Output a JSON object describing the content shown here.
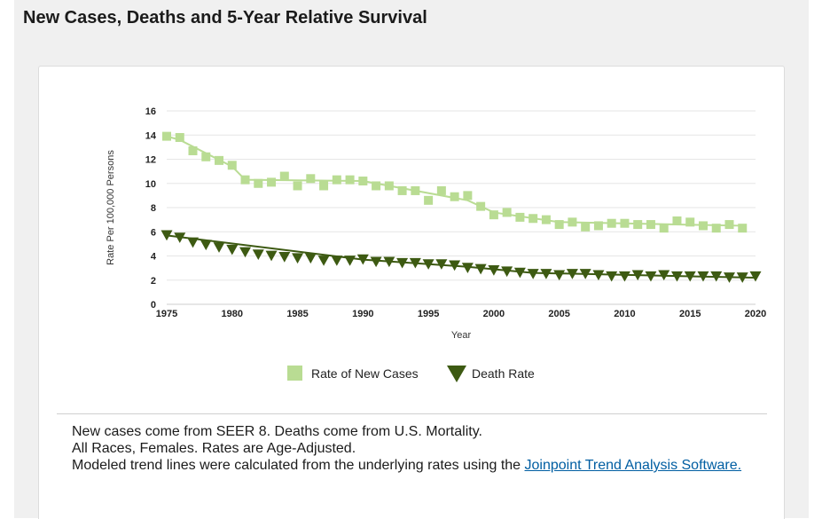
{
  "panel": {
    "title": "New Cases, Deaths and 5-Year Relative Survival"
  },
  "chart_data": {
    "type": "line",
    "xlabel": "Year",
    "ylabel": "Rate Per 100,000 Persons",
    "xlim": [
      1975,
      2020
    ],
    "ylim": [
      0,
      16
    ],
    "x_ticks": [
      1975,
      1980,
      1985,
      1990,
      1995,
      2000,
      2005,
      2010,
      2015,
      2020
    ],
    "y_ticks": [
      0,
      2,
      4,
      6,
      8,
      10,
      12,
      14,
      16
    ],
    "grid": true,
    "legend_position": "bottom",
    "series": [
      {
        "name": "Rate of New Cases",
        "marker": "square",
        "color": "#b9dc93",
        "x": [
          1975,
          1976,
          1977,
          1978,
          1979,
          1980,
          1981,
          1982,
          1983,
          1984,
          1985,
          1986,
          1987,
          1988,
          1989,
          1990,
          1991,
          1992,
          1993,
          1994,
          1995,
          1996,
          1997,
          1998,
          1999,
          2000,
          2001,
          2002,
          2003,
          2004,
          2005,
          2006,
          2007,
          2008,
          2009,
          2010,
          2011,
          2012,
          2013,
          2014,
          2015,
          2016,
          2017,
          2018,
          2019
        ],
        "values": [
          13.9,
          13.8,
          12.7,
          12.2,
          11.9,
          11.5,
          10.3,
          10.0,
          10.1,
          10.6,
          9.8,
          10.4,
          9.8,
          10.3,
          10.3,
          10.2,
          9.8,
          9.8,
          9.4,
          9.4,
          8.6,
          9.4,
          8.9,
          9.0,
          8.1,
          7.4,
          7.6,
          7.2,
          7.1,
          7.0,
          6.6,
          6.8,
          6.4,
          6.5,
          6.7,
          6.7,
          6.6,
          6.6,
          6.3,
          6.9,
          6.8,
          6.5,
          6.3,
          6.6,
          6.3
        ],
        "trend": {
          "x": [
            1975,
            1976,
            1980,
            1981,
            1990,
            1998,
            2000,
            2005,
            2019
          ],
          "values": [
            13.9,
            13.6,
            11.4,
            10.3,
            10.2,
            8.6,
            7.6,
            6.8,
            6.5
          ]
        }
      },
      {
        "name": "Death Rate",
        "marker": "triangle-down",
        "color": "#3d5a12",
        "x": [
          1975,
          1976,
          1977,
          1978,
          1979,
          1980,
          1981,
          1982,
          1983,
          1984,
          1985,
          1986,
          1987,
          1988,
          1989,
          1990,
          1991,
          1992,
          1993,
          1994,
          1995,
          1996,
          1997,
          1998,
          1999,
          2000,
          2001,
          2002,
          2003,
          2004,
          2005,
          2006,
          2007,
          2008,
          2009,
          2010,
          2011,
          2012,
          2013,
          2014,
          2015,
          2016,
          2017,
          2018,
          2019,
          2020
        ],
        "values": [
          5.7,
          5.5,
          5.1,
          4.9,
          4.7,
          4.5,
          4.3,
          4.1,
          4.0,
          3.9,
          3.8,
          3.8,
          3.6,
          3.6,
          3.6,
          3.7,
          3.5,
          3.5,
          3.4,
          3.4,
          3.3,
          3.3,
          3.2,
          3.0,
          2.9,
          2.8,
          2.7,
          2.6,
          2.5,
          2.5,
          2.4,
          2.5,
          2.5,
          2.4,
          2.3,
          2.3,
          2.4,
          2.3,
          2.4,
          2.3,
          2.3,
          2.3,
          2.3,
          2.2,
          2.2,
          2.3
        ],
        "trend": {
          "x": [
            1975,
            1990,
            1998,
            2003,
            2020
          ],
          "values": [
            5.7,
            3.7,
            3.1,
            2.6,
            2.2
          ]
        }
      }
    ]
  },
  "notes": {
    "line1": "New cases come from SEER 8. Deaths come from U.S. Mortality.",
    "line2": "All Races, Females. Rates are Age-Adjusted.",
    "line3_prefix": "Modeled trend lines were calculated from the underlying rates using the ",
    "link_text": "Joinpoint Trend Analysis Software."
  }
}
